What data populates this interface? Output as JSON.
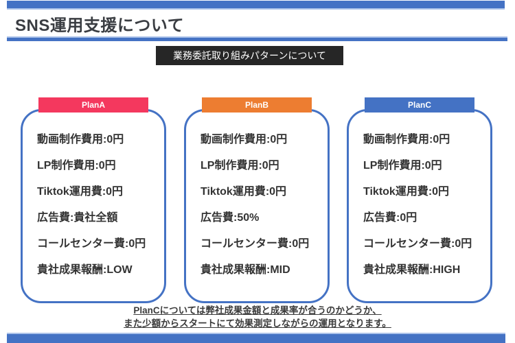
{
  "page": {
    "title": "SNS運用支援について",
    "section_badge": "業務委託取り組みパターンについて",
    "accent_color": "#4472C4",
    "accent_light_color": "#AEC4EA",
    "badge_bg_color": "#262626",
    "title_color": "#3A3D42"
  },
  "plans": [
    {
      "name": "PlanA",
      "color": "#F4385E",
      "items": [
        "動画制作費用:0円",
        "LP制作費用:0円",
        "Tiktok運用費:0円",
        "広告費:貴社全額",
        "コールセンター費:0円",
        "貴社成果報酬:LOW"
      ]
    },
    {
      "name": "PlanB",
      "color": "#ED7D31",
      "items": [
        "動画制作費用:0円",
        "LP制作費用:0円",
        "Tiktok運用費:0円",
        "広告費:50%",
        "コールセンター費:0円",
        "貴社成果報酬:MID"
      ]
    },
    {
      "name": "PlanC",
      "color": "#4472C4",
      "items": [
        "動画制作費用:0円",
        "LP制作費用:0円",
        "Tiktok運用費:0円",
        "広告費:0円",
        "コールセンター費:0円",
        "貴社成果報酬:HIGH"
      ]
    }
  ],
  "note": {
    "line1": "PlanCについては弊社成果金額と成果率が合うのかどうか、",
    "line2": "また少額からスタートにて効果測定しながらの運用となります。"
  }
}
